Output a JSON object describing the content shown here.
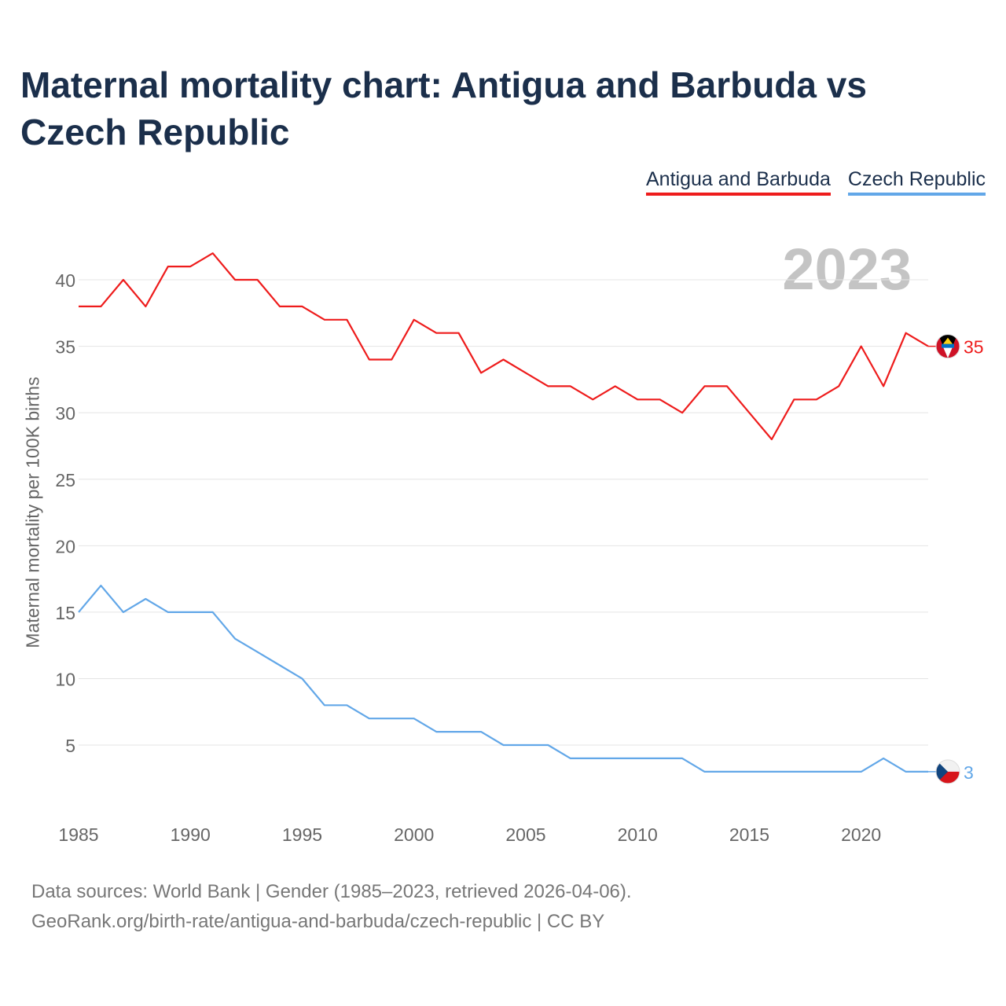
{
  "title": "Maternal mortality chart: Antigua and Barbuda vs Czech Republic",
  "watermark_year": "2023",
  "footer": {
    "line1": "Data sources: World Bank | Gender (1985–2023, retrieved 2026-04-06).",
    "line2": "GeoRank.org/birth-rate/antigua-and-barbuda/czech-republic | CC BY"
  },
  "chart_data": {
    "type": "line",
    "title": "Maternal mortality chart: Antigua and Barbuda vs Czech Republic",
    "xlabel": "",
    "ylabel": "Maternal mortality per 100K births",
    "xlim": [
      1985,
      2023
    ],
    "ylim": [
      0,
      42
    ],
    "yticks": [
      5,
      10,
      15,
      20,
      25,
      30,
      35,
      40
    ],
    "xticks": [
      1985,
      1990,
      1995,
      2000,
      2005,
      2010,
      2015,
      2020
    ],
    "grid": true,
    "legend_position": "top-right",
    "x": [
      1985,
      1986,
      1987,
      1988,
      1989,
      1990,
      1991,
      1992,
      1993,
      1994,
      1995,
      1996,
      1997,
      1998,
      1999,
      2000,
      2001,
      2002,
      2003,
      2004,
      2005,
      2006,
      2007,
      2008,
      2009,
      2010,
      2011,
      2012,
      2013,
      2014,
      2015,
      2016,
      2017,
      2018,
      2019,
      2020,
      2021,
      2022,
      2023
    ],
    "series": [
      {
        "name": "Antigua and Barbuda",
        "color": "#ee1c1c",
        "end_label": "35",
        "flag_icon": "antigua-and-barbuda-flag-icon",
        "values": [
          38,
          38,
          40,
          38,
          41,
          41,
          42,
          40,
          40,
          38,
          38,
          37,
          37,
          34,
          34,
          37,
          36,
          36,
          33,
          34,
          33,
          32,
          32,
          31,
          32,
          31,
          31,
          30,
          32,
          32,
          30,
          28,
          31,
          31,
          32,
          35,
          32,
          36,
          35
        ]
      },
      {
        "name": "Czech Republic",
        "color": "#62a7e8",
        "end_label": "3",
        "flag_icon": "czech-republic-flag-icon",
        "values": [
          15,
          17,
          15,
          16,
          15,
          15,
          15,
          13,
          12,
          11,
          10,
          8,
          8,
          7,
          7,
          7,
          6,
          6,
          6,
          5,
          5,
          5,
          4,
          4,
          4,
          4,
          4,
          4,
          3,
          3,
          3,
          3,
          3,
          3,
          3,
          3,
          4,
          3,
          3
        ]
      }
    ]
  }
}
